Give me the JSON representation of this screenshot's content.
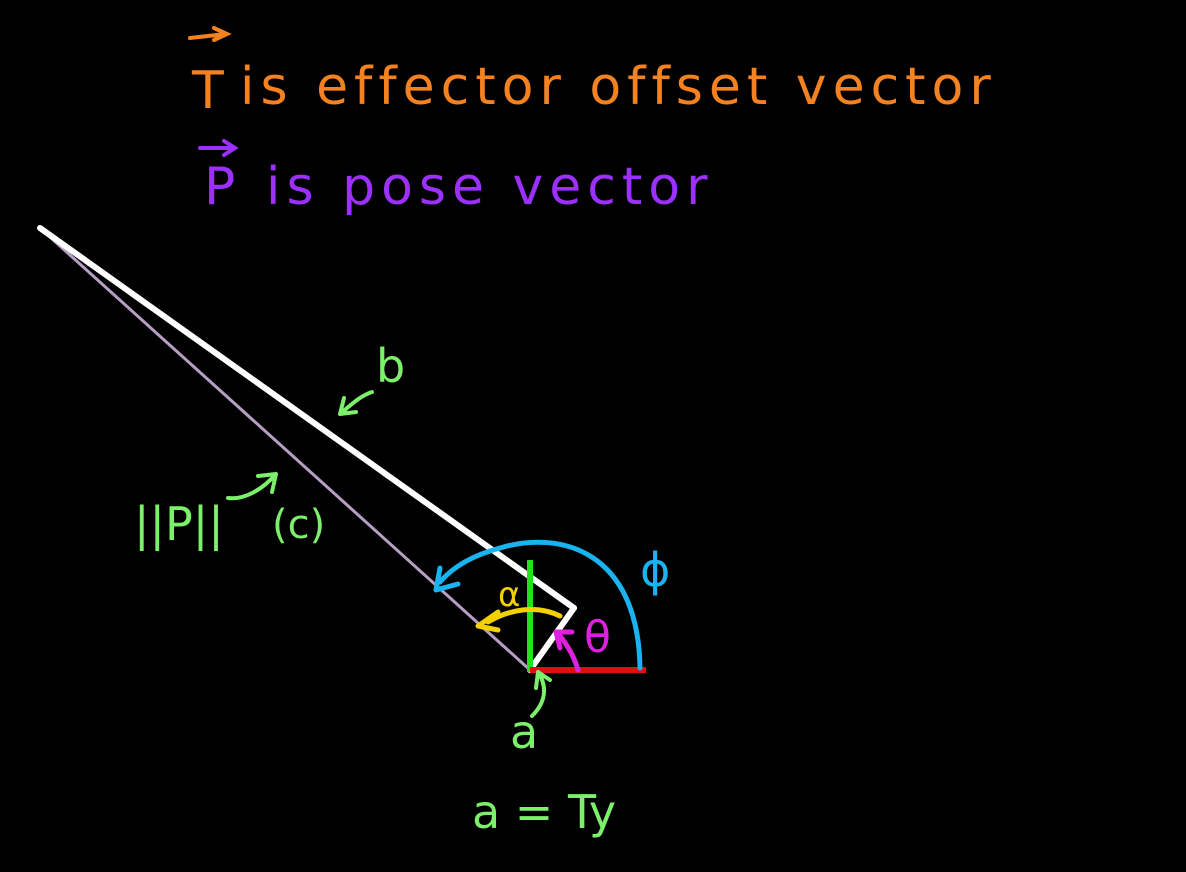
{
  "notes": {
    "line1_symbol": "T",
    "line1_text": "is effector offset vector",
    "line2_symbol": "P",
    "line2_text": "is pose vector"
  },
  "labels": {
    "b": "b",
    "c": "(c)",
    "p_norm": "||P||",
    "phi": "ϕ",
    "theta": "θ",
    "alpha": "α",
    "a_bottom": "a",
    "equation": "a = Ty"
  },
  "colors": {
    "title1": "#f58220",
    "title2": "#9b30ff",
    "white_line": "#ffffff",
    "lavender_line": "#b79fc4",
    "green": "#7cf06a",
    "bright_green": "#22e022",
    "red": "#e01010",
    "blue": "#19b4f0",
    "magenta": "#e020e0",
    "yellow": "#f5d000"
  }
}
